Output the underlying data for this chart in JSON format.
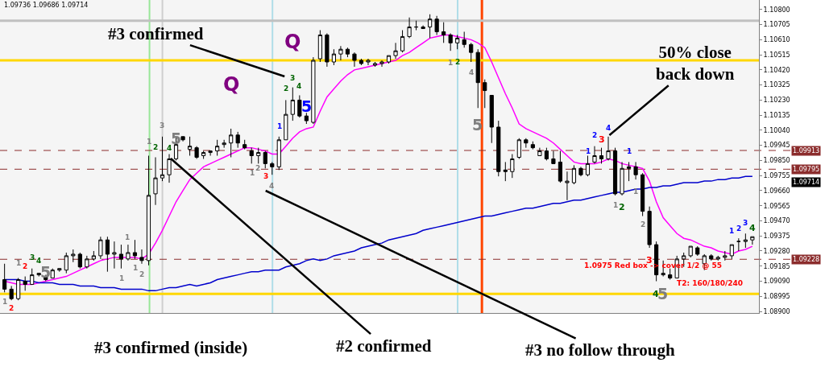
{
  "chart_data": {
    "type": "candlestick",
    "categories": [
      null,
      null,
      null,
      null,
      null,
      null,
      null,
      null,
      null,
      null,
      null,
      null,
      null,
      null,
      null,
      null,
      null,
      null,
      null,
      null,
      null,
      null,
      null,
      null,
      null,
      null,
      null,
      null,
      null,
      null,
      null,
      null,
      null,
      null,
      null,
      null,
      null,
      null,
      null,
      null,
      null,
      null,
      null,
      null,
      null,
      null,
      null,
      null,
      null,
      null,
      null,
      null,
      null,
      null,
      null,
      null,
      null,
      null,
      null,
      null,
      null,
      null,
      null,
      null,
      null,
      null,
      null,
      null,
      null,
      null,
      null,
      null,
      null,
      null,
      null,
      null,
      null,
      null,
      null,
      null,
      null,
      null,
      null,
      null,
      null,
      null,
      null,
      null,
      null,
      null,
      null,
      null,
      null,
      null,
      null,
      null,
      null,
      null,
      null,
      null,
      null,
      null,
      null,
      null,
      null,
      null,
      null,
      null,
      null,
      null
    ],
    "ohlc": [
      [
        1.091,
        1.092,
        1.0902,
        1.0904
      ],
      [
        1.0904,
        1.0906,
        1.0897,
        1.0898
      ],
      [
        1.0898,
        1.0911,
        1.0897,
        1.091
      ],
      [
        1.0909,
        1.0912,
        1.0903,
        1.0907
      ],
      [
        1.0907,
        1.0917,
        1.0907,
        1.0913
      ],
      [
        1.0913,
        1.0914,
        1.0912,
        1.0914
      ],
      [
        1.0912,
        1.0913,
        1.0909,
        1.091
      ],
      [
        1.0911,
        1.0917,
        1.0911,
        1.0916
      ],
      [
        1.0916,
        1.0917,
        1.0915,
        1.0917
      ],
      [
        1.0916,
        1.0927,
        1.0914,
        1.0925
      ],
      [
        1.0925,
        1.0929,
        1.0921,
        1.0926
      ],
      [
        1.0926,
        1.0927,
        1.0917,
        1.0918
      ],
      [
        1.0918,
        1.0925,
        1.0917,
        1.0923
      ],
      [
        1.0923,
        1.0928,
        1.0922,
        1.0925
      ],
      [
        1.0925,
        1.0937,
        1.0923,
        1.0935
      ],
      [
        1.0935,
        1.0937,
        1.0915,
        1.0926
      ],
      [
        1.0926,
        1.0934,
        1.0917,
        1.0927
      ],
      [
        1.0926,
        1.0932,
        1.0917,
        1.0923
      ],
      [
        1.0923,
        1.0932,
        1.0922,
        1.0927
      ],
      [
        1.0927,
        1.0935,
        1.0923,
        1.0925
      ],
      [
        1.0924,
        1.0929,
        1.092,
        1.0922
      ],
      [
        1.0922,
        1.0988,
        1.0919,
        1.0963
      ],
      [
        1.0964,
        1.0987,
        1.0957,
        1.0974
      ],
      [
        1.0974,
        1.1,
        1.0972,
        1.0976
      ],
      [
        1.0976,
        1.0989,
        1.0971,
        1.0986
      ],
      [
        1.0986,
        1.1,
        1.0985,
        1.0995
      ],
      [
        1.1,
        1.1,
        1.0997,
        1.0998
      ],
      [
        1.0992,
        1.1,
        1.0988,
        1.0994
      ],
      [
        1.0993,
        1.0994,
        1.0986,
        1.0987
      ],
      [
        1.0988,
        1.0991,
        1.0986,
        1.099
      ],
      [
        1.099,
        1.0991,
        1.0988,
        1.0991
      ],
      [
        1.0991,
        1.0998,
        1.0988,
        1.0994
      ],
      [
        1.0995,
        1.0998,
        1.0993,
        1.0996
      ],
      [
        1.0996,
        1.1005,
        1.0987,
        1.1001
      ],
      [
        1.1001,
        1.1003,
        1.0993,
        1.0996
      ],
      [
        1.0995,
        1.0998,
        1.0992,
        1.0993
      ],
      [
        1.0991,
        1.0993,
        1.0983,
        1.0988
      ],
      [
        1.0988,
        1.0993,
        1.0983,
        1.099
      ],
      [
        1.099,
        1.0991,
        1.098,
        1.0983
      ],
      [
        1.0983,
        1.0984,
        1.0976,
        1.0981
      ],
      [
        1.0981,
        1.1,
        1.0979,
        1.0998
      ],
      [
        1.0998,
        1.1023,
        1.0998,
        1.1014
      ],
      [
        1.1014,
        1.1031,
        1.101,
        1.1023
      ],
      [
        1.1023,
        1.1026,
        1.1012,
        1.1013
      ],
      [
        1.1013,
        1.1015,
        1.1008,
        1.101
      ],
      [
        1.1009,
        1.105,
        1.1008,
        1.1048
      ],
      [
        1.1049,
        1.1067,
        1.1047,
        1.1064
      ],
      [
        1.1064,
        1.1065,
        1.1044,
        1.1047
      ],
      [
        1.1047,
        1.1055,
        1.1045,
        1.1052
      ],
      [
        1.1052,
        1.1057,
        1.1048,
        1.1055
      ],
      [
        1.1055,
        1.1056,
        1.105,
        1.1052
      ],
      [
        1.1052,
        1.1053,
        1.1044,
        1.1048
      ],
      [
        1.1048,
        1.1049,
        1.1045,
        1.1046
      ],
      [
        1.1047,
        1.1049,
        1.1045,
        1.1048
      ],
      [
        1.1045,
        1.1047,
        1.1044,
        1.1046
      ],
      [
        1.1046,
        1.1048,
        1.1044,
        1.1047
      ],
      [
        1.1047,
        1.1051,
        1.1046,
        1.1051
      ],
      [
        1.1051,
        1.1059,
        1.1049,
        1.1054
      ],
      [
        1.1054,
        1.1067,
        1.1053,
        1.1063
      ],
      [
        1.1063,
        1.1075,
        1.1062,
        1.1069
      ],
      [
        1.1069,
        1.1073,
        1.1067,
        1.1069
      ],
      [
        1.1069,
        1.107,
        1.1068,
        1.1068
      ],
      [
        1.1069,
        1.1077,
        1.1062,
        1.1074
      ],
      [
        1.1074,
        1.1076,
        1.1064,
        1.1066
      ],
      [
        1.1066,
        1.1072,
        1.1059,
        1.1064
      ],
      [
        1.1064,
        1.1065,
        1.1054,
        1.1059
      ],
      [
        1.1059,
        1.1064,
        1.1055,
        1.1062
      ],
      [
        1.1061,
        1.1066,
        1.1056,
        1.1058
      ],
      [
        1.1058,
        1.1059,
        1.1047,
        1.1053
      ],
      [
        1.1053,
        1.1055,
        1.1018,
        1.1034
      ],
      [
        1.1034,
        1.1036,
        1.1018,
        1.1029
      ],
      [
        1.1026,
        1.1026,
        1.0996,
        1.1006
      ],
      [
        1.1006,
        1.101,
        1.0975,
        1.0978
      ],
      [
        1.0979,
        1.0984,
        1.0972,
        1.0978
      ],
      [
        1.0978,
        1.0989,
        1.0974,
        1.0986
      ],
      [
        1.0987,
        1.0999,
        1.0986,
        1.0998
      ],
      [
        1.0998,
        1.0999,
        1.0993,
        1.0996
      ],
      [
        1.0995,
        1.0997,
        1.0992,
        1.0993
      ],
      [
        1.0988,
        1.0993,
        1.0988,
        1.0991
      ],
      [
        1.0991,
        1.0993,
        1.0985,
        1.0986
      ],
      [
        1.0986,
        1.0991,
        1.0983,
        1.0983
      ],
      [
        1.0984,
        1.0991,
        1.0971,
        1.0972
      ],
      [
        1.0971,
        1.0978,
        1.096,
        1.0972
      ],
      [
        1.0971,
        1.0982,
        1.097,
        1.098
      ],
      [
        1.098,
        1.0981,
        1.0975,
        1.0976
      ],
      [
        1.0976,
        1.0988,
        1.0975,
        1.0983
      ],
      [
        1.0984,
        1.0994,
        1.0983,
        1.0988
      ],
      [
        1.0988,
        1.0993,
        1.0983,
        1.0986
      ],
      [
        1.0986,
        1.1,
        1.0985,
        1.0991
      ],
      [
        1.0991,
        1.0993,
        1.0963,
        1.0964
      ],
      [
        1.0964,
        1.0984,
        1.0963,
        1.098
      ],
      [
        1.0981,
        1.0984,
        1.0972,
        1.098
      ],
      [
        1.0981,
        1.0984,
        1.0973,
        1.0976
      ],
      [
        1.0976,
        1.0977,
        1.095,
        1.0953
      ],
      [
        1.0953,
        1.0956,
        1.093,
        1.0932
      ],
      [
        1.0932,
        1.0934,
        1.0909,
        1.0913
      ],
      [
        1.0913,
        1.0922,
        1.0912,
        1.0914
      ],
      [
        1.0913,
        1.0917,
        1.091,
        1.0911
      ],
      [
        1.0911,
        1.0925,
        1.0911,
        1.0923
      ],
      [
        1.0923,
        1.0927,
        1.0918,
        1.0925
      ],
      [
        1.0925,
        1.0931,
        1.0924,
        1.0931
      ],
      [
        1.093,
        1.0931,
        1.0925,
        1.0926
      ],
      [
        1.092,
        1.0926,
        1.0916,
        1.0925
      ],
      [
        1.0925,
        1.0926,
        1.0922,
        1.0923
      ],
      [
        1.0923,
        1.0925,
        1.0922,
        1.0924
      ],
      [
        1.0924,
        1.0928,
        1.0922,
        1.0925
      ],
      [
        1.0925,
        1.0932,
        1.0923,
        1.0932
      ],
      [
        1.0934,
        1.0936,
        1.0928,
        1.0934
      ],
      [
        1.0934,
        1.0939,
        1.093,
        1.0935
      ],
      [
        1.0935,
        1.0937,
        1.0932,
        1.0937
      ]
    ],
    "series": [
      {
        "type": "line",
        "color": "#ff00ff",
        "values": [
          1.0909,
          1.0908,
          1.0907,
          1.0907,
          1.0907,
          1.0908,
          1.0909,
          1.091,
          1.0911,
          1.0912,
          1.0914,
          1.0916,
          1.0918,
          1.092,
          1.0922,
          1.0923,
          1.0924,
          1.0924,
          1.0924,
          1.0924,
          1.0923,
          1.0926,
          1.0933,
          1.0941,
          1.095,
          1.0959,
          1.0966,
          1.0973,
          1.0977,
          1.0981,
          1.0983,
          1.0985,
          1.0987,
          1.0989,
          1.0991,
          1.0993,
          1.0993,
          1.0992,
          1.0991,
          1.0989,
          1.0989,
          1.0994,
          1.0999,
          1.1003,
          1.1005,
          1.1006,
          1.1016,
          1.1025,
          1.103,
          1.1035,
          1.1039,
          1.1042,
          1.1043,
          1.1044,
          1.1045,
          1.1046,
          1.1047,
          1.1048,
          1.1051,
          1.1053,
          1.1056,
          1.1059,
          1.1062,
          1.1063,
          1.1064,
          1.1064,
          1.1063,
          1.1062,
          1.1061,
          1.1059,
          1.1056,
          1.1047,
          1.1037,
          1.1027,
          1.1018,
          1.1008,
          1.1005,
          1.1003,
          1.1001,
          1.0999,
          1.0996,
          1.0992,
          1.0988,
          1.0984,
          1.0983,
          1.0983,
          1.0983,
          1.0984,
          1.0986,
          1.0985,
          1.0983,
          1.0982,
          1.0981,
          1.098,
          1.0972,
          1.0959,
          1.0949,
          1.0944,
          1.0939,
          1.0936,
          1.0935,
          1.0933,
          1.0931,
          1.093,
          1.0928,
          1.0927,
          1.0926,
          1.0928,
          1.0929,
          1.0931
        ]
      },
      {
        "type": "line",
        "color": "#0000cc",
        "values": [
          1.091,
          1.091,
          1.091,
          1.0909,
          1.0909,
          1.0908,
          1.0908,
          1.0908,
          1.0907,
          1.0907,
          1.0907,
          1.0906,
          1.0906,
          1.0906,
          1.0905,
          1.0905,
          1.0905,
          1.0904,
          1.0904,
          1.0904,
          1.0904,
          1.0903,
          1.0903,
          1.0904,
          1.0905,
          1.0905,
          1.0906,
          1.0907,
          1.0906,
          1.0907,
          1.0908,
          1.091,
          1.0911,
          1.0912,
          1.0913,
          1.0914,
          1.0915,
          1.0915,
          1.0916,
          1.0916,
          1.0916,
          1.0918,
          1.0919,
          1.092,
          1.0922,
          1.0923,
          1.0922,
          1.0923,
          1.0925,
          1.0926,
          1.0927,
          1.0928,
          1.093,
          1.0931,
          1.0932,
          1.0933,
          1.0935,
          1.0936,
          1.0937,
          1.0938,
          1.0939,
          1.0941,
          1.0942,
          1.0943,
          1.0944,
          1.0945,
          1.0946,
          1.0947,
          1.0948,
          1.0949,
          1.095,
          1.095,
          1.0951,
          1.0952,
          1.0953,
          1.0954,
          1.0955,
          1.0955,
          1.0956,
          1.0957,
          1.0958,
          1.0958,
          1.0959,
          1.096,
          1.096,
          1.0961,
          1.0962,
          1.0963,
          1.0964,
          1.0965,
          1.0965,
          1.0966,
          1.0967,
          1.0967,
          1.0968,
          1.0968,
          1.0969,
          1.0969,
          1.097,
          1.0971,
          1.0971,
          1.0971,
          1.0972,
          1.0972,
          1.0973,
          1.0973,
          1.0974,
          1.0974,
          1.0975,
          1.0975
        ]
      }
    ],
    "ylim": [
      1.0889,
      1.1086
    ],
    "yticks": [
      {
        "value": 1.089,
        "label": "1.08900"
      },
      {
        "value": 1.08995,
        "label": "1.08995"
      },
      {
        "value": 1.0909,
        "label": "1.09090"
      },
      {
        "value": 1.09185,
        "label": "1.09185"
      },
      {
        "value": 1.0928,
        "label": "1.09280"
      },
      {
        "value": 1.09375,
        "label": "1.09375"
      },
      {
        "value": 1.0947,
        "label": "1.09470"
      },
      {
        "value": 1.09565,
        "label": "1.09565"
      },
      {
        "value": 1.0966,
        "label": "1.09660"
      },
      {
        "value": 1.09755,
        "label": "1.09755"
      },
      {
        "value": 1.0985,
        "label": "1.09850"
      },
      {
        "value": 1.09945,
        "label": "1.09945"
      },
      {
        "value": 1.1004,
        "label": "1.10040"
      },
      {
        "value": 1.10135,
        "label": "1.10135"
      },
      {
        "value": 1.1023,
        "label": "1.10230"
      },
      {
        "value": 1.10325,
        "label": "1.10325"
      },
      {
        "value": 1.1042,
        "label": "1.10420"
      },
      {
        "value": 1.10515,
        "label": "1.10515"
      },
      {
        "value": 1.1061,
        "label": "1.10610"
      },
      {
        "value": 1.10705,
        "label": "1.10705"
      },
      {
        "value": 1.108,
        "label": "1.10800"
      }
    ],
    "ref_lines": [
      {
        "axis": "y",
        "value": 1.1073,
        "color": "#c0c0c0"
      },
      {
        "axis": "y",
        "value": 1.1048,
        "color": "#ffd700"
      },
      {
        "axis": "y",
        "value": 1.0901,
        "color": "#ffd700"
      },
      {
        "axis": "y",
        "value": 1.09913,
        "label": "1.09913",
        "color": "#8b2c2c",
        "line_style": "dashed"
      },
      {
        "axis": "y",
        "value": 1.09795,
        "label": "1.09795",
        "color": "#8b2c2c",
        "line_style": "dashed"
      },
      {
        "axis": "y",
        "value": 1.09228,
        "label": "1.09228",
        "color": "#8b2c2c",
        "line_style": "dashed"
      }
    ],
    "annotations": [
      "1.09736 1.09686 1.09714",
      "#3 confirmed",
      "50% close back down",
      "#3 confirmed (inside)",
      "#2 confirmed",
      "#3 no follow through",
      "1.0975 Red box -> cover 1/2 @ 55",
      "T2: 160/180/240",
      "1.09714",
      "1",
      "2",
      "1",
      "2",
      "3",
      "4",
      "5",
      "1",
      "1",
      "1",
      "2",
      "1",
      "2",
      "3",
      "4",
      "5",
      "1",
      "2",
      "3",
      "4",
      "1",
      "2",
      "3",
      "4",
      "5",
      "Q",
      "Q",
      "1",
      "2",
      "4",
      "5",
      "1",
      "2",
      "3",
      "4",
      "1",
      "1",
      "2",
      "1",
      "2",
      "3",
      "4",
      "5",
      "1",
      "2",
      "3",
      "4"
    ]
  }
}
